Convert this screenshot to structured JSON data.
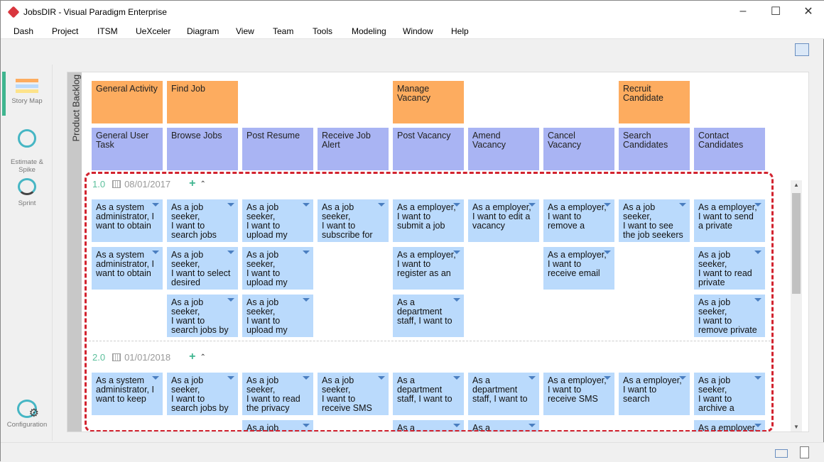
{
  "window": {
    "title": "JobsDIR - Visual Paradigm Enterprise"
  },
  "menu": [
    "Dash",
    "Project",
    "ITSM",
    "UeXceler",
    "Diagram",
    "View",
    "Team",
    "Tools",
    "Modeling",
    "Window",
    "Help"
  ],
  "sidebar": {
    "items": [
      {
        "label": "Story Map",
        "icon": "story-map-icon"
      },
      {
        "label": "Estimate &\nSpike",
        "icon": "estimate-spike-icon"
      },
      {
        "label": "Sprint",
        "icon": "sprint-icon"
      },
      {
        "label": "Configuration",
        "icon": "configuration-icon"
      }
    ]
  },
  "backlog_label": "Product Backlog",
  "activities": [
    "General Activity",
    "Find Job",
    null,
    null,
    "Manage\nVacancy",
    null,
    null,
    "Recruit\nCandidate",
    null
  ],
  "tasks": [
    "General User\nTask",
    "Browse Jobs",
    "Post Resume",
    "Receive Job\nAlert",
    "Post Vacancy",
    "Amend\nVacancy",
    "Cancel\nVacancy",
    "Search\nCandidates",
    "Contact\nCandidates"
  ],
  "releases": [
    {
      "version": "1.0",
      "date": "08/01/2017",
      "rows": [
        [
          "As a system\nadministrator, I\nwant to obtain",
          "As a job seeker,\nI want to\nsearch jobs",
          "As a job seeker,\nI want to\nupload my",
          "As a job seeker,\nI want to\nsubscribe for",
          "As a employer,\nI want to\nsubmit a job",
          "As a employer,\nI want to edit a\nvacancy",
          "As a employer,\nI want to\nremove a",
          "As a job seeker,\nI want to see\nthe job seekers",
          "As a employer,\nI want to send\na private"
        ],
        [
          "As a system\nadministrator, I\nwant to obtain",
          "As a job seeker,\nI want to select\ndesired",
          "As a job seeker,\nI want to\nupload my",
          null,
          "As a employer,\nI want to\nregister as an",
          null,
          "As a employer,\nI want to\nreceive email",
          null,
          "As a job seeker,\nI want to read\nprivate"
        ],
        [
          null,
          "As a job seeker,\nI want to\nsearch jobs by",
          "As a job seeker,\nI want to\nupload my",
          null,
          "As a\ndepartment\nstaff, I want to",
          null,
          null,
          null,
          "As a job seeker,\nI want to\nremove private"
        ]
      ]
    },
    {
      "version": "2.0",
      "date": "01/01/2018",
      "rows": [
        [
          "As a system\nadministrator, I\nwant to keep",
          "As a job seeker,\nI want to\nsearch jobs by",
          "As a job seeker,\nI want to read\nthe privacy",
          "As a job seeker,\nI want to\nreceive SMS",
          "As a\ndepartment\nstaff, I want to",
          "As a\ndepartment\nstaff, I want to",
          "As a employer,\nI want to\nreceive SMS",
          "As a employer,\nI want to\nsearch",
          "As a job seeker,\nI want to\narchive a"
        ],
        [
          null,
          null,
          "As a job seeker,",
          null,
          "As a",
          "As a",
          null,
          null,
          "As a employer,"
        ]
      ]
    }
  ],
  "colors": {
    "activity": "#fdac5f",
    "task": "#a9b4f3",
    "story": "#badafc",
    "release_border": "#d2232f",
    "accent": "#3fb58f"
  }
}
